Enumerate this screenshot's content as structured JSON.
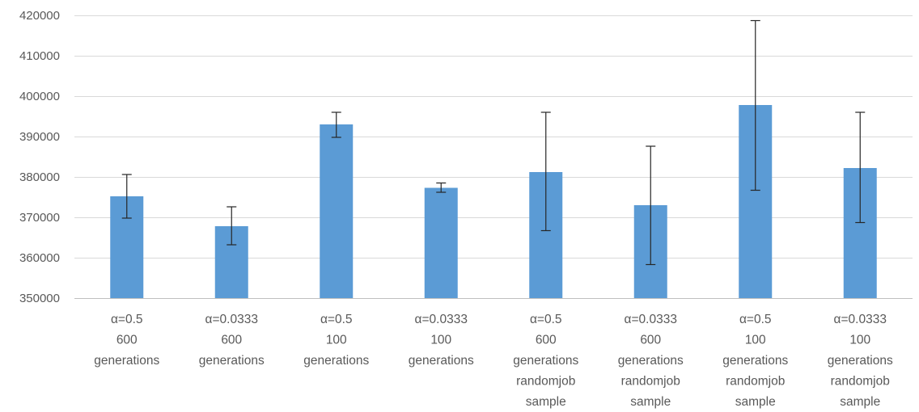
{
  "chart_data": {
    "type": "bar",
    "categories": [
      [
        "α=0.5",
        "600",
        "generations"
      ],
      [
        "α=0.0333",
        "600",
        "generations"
      ],
      [
        "α=0.5",
        "100",
        "generations"
      ],
      [
        "α=0.0333",
        "100",
        "generations"
      ],
      [
        "α=0.5",
        "600",
        "generations",
        "randomjob",
        "sample"
      ],
      [
        "α=0.0333",
        "600",
        "generations",
        "randomjob",
        "sample"
      ],
      [
        "α=0.5",
        "100",
        "generations",
        "randomjob",
        "sample"
      ],
      [
        "α=0.0333",
        "100",
        "generations",
        "randomjob",
        "sample"
      ]
    ],
    "values": [
      375200,
      367800,
      393000,
      377300,
      381200,
      373000,
      397800,
      382200
    ],
    "error_low": [
      369800,
      363200,
      389800,
      376200,
      366700,
      358300,
      376700,
      368700
    ],
    "error_high": [
      380600,
      372600,
      396000,
      378500,
      396000,
      387600,
      418700,
      396000
    ],
    "ylim": [
      350000,
      420000
    ],
    "yticks": [
      350000,
      360000,
      370000,
      380000,
      390000,
      400000,
      410000,
      420000
    ],
    "ytick_labels": [
      "350000",
      "360000",
      "370000",
      "380000",
      "390000",
      "400000",
      "410000",
      "420000"
    ],
    "grid": true,
    "bar_color": "#5b9bd5"
  }
}
